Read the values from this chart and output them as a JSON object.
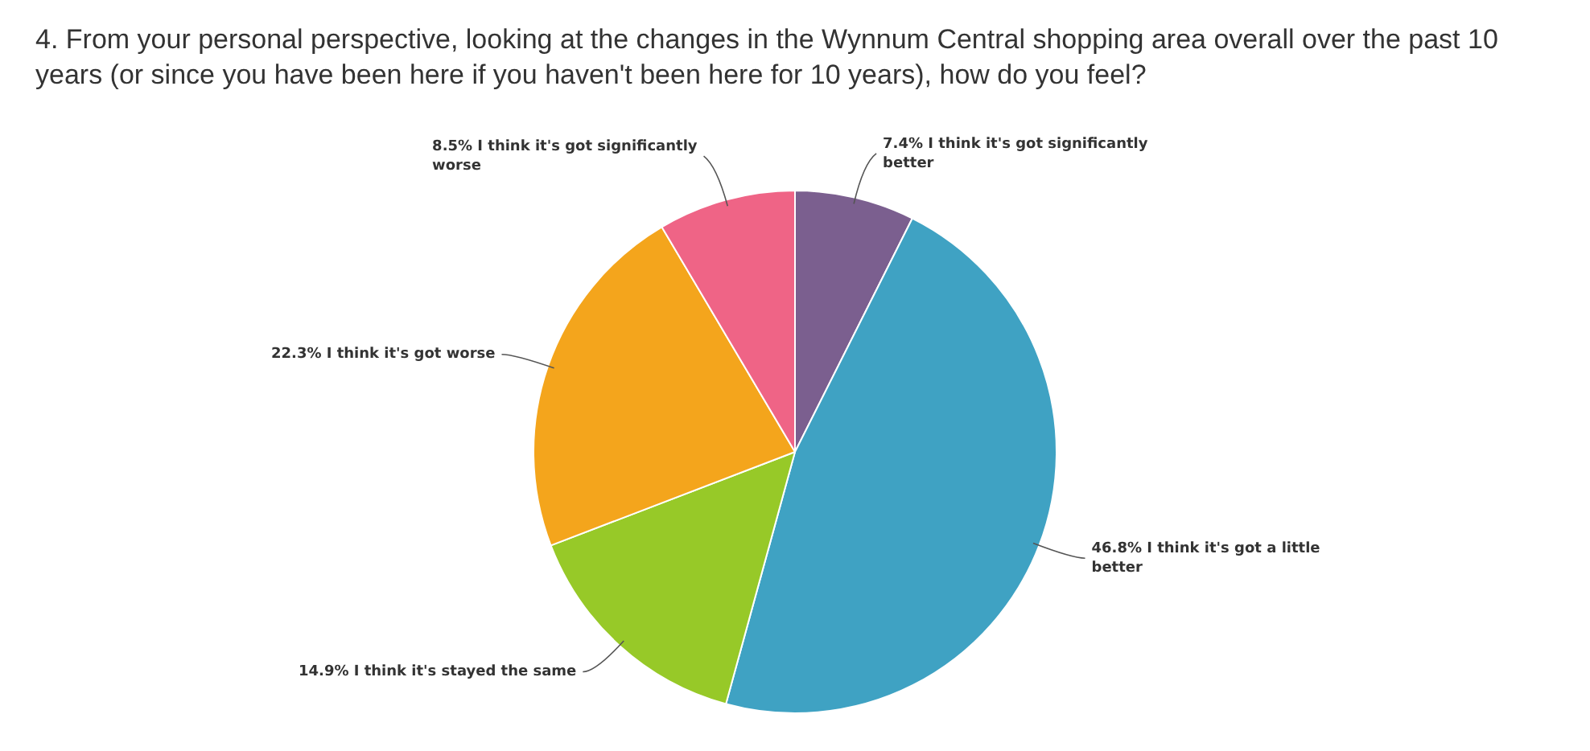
{
  "chart_data": {
    "type": "pie",
    "title": "4. From your personal perspective, looking at the changes in the Wynnum Central shopping area overall over the past 10 years (or since you have been here if you haven't been here for 10 years), how do you feel?",
    "categories": [
      "I think it's got significantly better",
      "I think it's got a little better",
      "I think it's stayed the same",
      "I think it's got worse",
      "I think it's got significantly worse"
    ],
    "values": [
      7.4,
      46.8,
      14.9,
      22.3,
      8.5
    ],
    "value_labels": [
      "7.4%",
      "46.8%",
      "14.9%",
      "22.3%",
      "8.5%"
    ],
    "colors": [
      "#7b5f8f",
      "#3fa2c3",
      "#97c928",
      "#f4a51c",
      "#ef6486"
    ],
    "legend": false
  }
}
